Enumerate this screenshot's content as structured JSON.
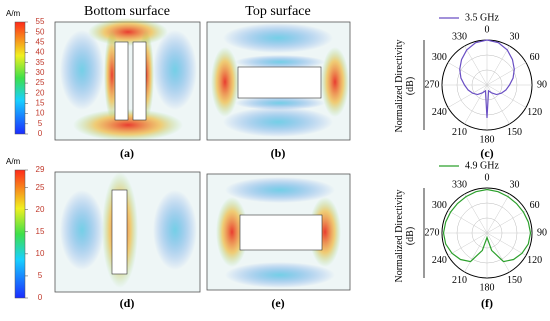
{
  "figure": {
    "titles": [
      "Bottom surface",
      "Top surface"
    ],
    "panel_labels": [
      "(a)",
      "(b)",
      "(c)",
      "(d)",
      "(e)",
      "(f)"
    ],
    "colorbars": [
      {
        "unit": "A/m",
        "ylim": [
          0,
          55
        ],
        "yticks": [
          0,
          5,
          10,
          15,
          20,
          25,
          30,
          35,
          40,
          45,
          50,
          55
        ]
      },
      {
        "unit": "A/m",
        "ylim": [
          0,
          29
        ],
        "yticks": [
          0,
          5,
          10,
          15,
          20,
          25,
          29
        ]
      }
    ]
  },
  "chart_data": [
    {
      "type": "polar",
      "ylabel": "Normalized Directivity (dB)",
      "theta": [
        0,
        15,
        30,
        45,
        60,
        75,
        90,
        105,
        120,
        135,
        150,
        165,
        180,
        195,
        210,
        225,
        240,
        255,
        270,
        285,
        300,
        315,
        330,
        345
      ],
      "rlim": [
        -30,
        0
      ],
      "thetaticks": [
        0,
        30,
        60,
        90,
        120,
        150,
        180,
        210,
        240,
        270,
        300,
        330
      ],
      "series": [
        {
          "name": "3.5 GHz",
          "color": "#6a4fc4",
          "values": [
            0,
            -0.8,
            -3,
            -6,
            -9,
            -12,
            -15,
            -17,
            -19,
            -21,
            -24,
            -26,
            -8,
            -26,
            -24,
            -21,
            -19,
            -17,
            -15,
            -12,
            -9,
            -6,
            -3,
            -0.8
          ]
        }
      ]
    },
    {
      "type": "polar",
      "ylabel": "Normalized Directivity (dB)",
      "theta": [
        0,
        15,
        30,
        45,
        60,
        75,
        90,
        105,
        120,
        135,
        150,
        165,
        180,
        195,
        210,
        225,
        240,
        255,
        270,
        285,
        300,
        315,
        330,
        345
      ],
      "rlim": [
        -30,
        0
      ],
      "thetaticks": [
        0,
        30,
        60,
        90,
        120,
        150,
        180,
        210,
        240,
        270,
        300,
        330
      ],
      "series": [
        {
          "name": "4.9 GHz",
          "color": "#2ca02c",
          "values": [
            -1,
            -1.5,
            -2,
            -2.2,
            -2,
            -1.5,
            -1,
            -1.5,
            -3,
            -5,
            -8,
            -18,
            -27,
            -18,
            -8,
            -5,
            -3,
            -1.5,
            -1,
            -1.5,
            -2,
            -2.2,
            -2,
            -1.5
          ]
        }
      ]
    }
  ]
}
